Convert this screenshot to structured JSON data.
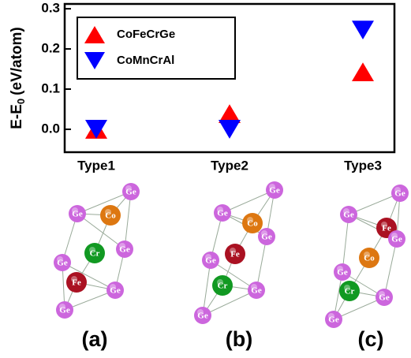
{
  "chart_data": {
    "type": "scatter",
    "y_label": {
      "main": "E-E",
      "sub": "0",
      "unit": "(eV/atom)"
    },
    "categories": [
      "Type1",
      "Type2",
      "Type3"
    ],
    "series": [
      {
        "name": "CoFeCrGe",
        "color": "#ff0000",
        "marker": "triangle-up",
        "values": [
          0.0,
          0.039,
          0.143
        ]
      },
      {
        "name": "CoMnCrAl",
        "color": "#0000ff",
        "marker": "triangle-down",
        "values": [
          0.0,
          0.0,
          0.247
        ]
      }
    ],
    "ylim": [
      -0.057,
      0.312
    ],
    "yticks": [
      {
        "value": 0,
        "label": "0.0"
      },
      0.1,
      0.2,
      0.3
    ],
    "legend": "upper left"
  },
  "structures": [
    {
      "label": "(a)",
      "atoms": [
        "Ge",
        "Ge",
        "Co",
        "Ge",
        "Cr",
        "Ge",
        "Fe",
        "Ge",
        "Ge"
      ]
    },
    {
      "label": "(b)",
      "atoms": [
        "Ge",
        "Ge",
        "Co",
        "Ge",
        "Fe",
        "Ge",
        "Cr",
        "Ge",
        "Ge"
      ]
    },
    {
      "label": "(c)",
      "atoms": [
        "Ge",
        "Ge",
        "Fe",
        "Ge",
        "Co",
        "Ge",
        "Cr",
        "Ge",
        "Ge"
      ]
    }
  ]
}
